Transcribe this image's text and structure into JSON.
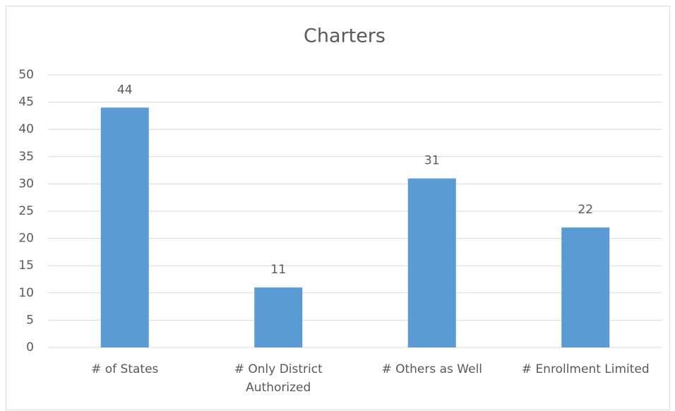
{
  "chart_data": {
    "type": "bar",
    "title": "Charters",
    "categories": [
      "# of States",
      "# Only District Authorized",
      "# Others as Well",
      "# Enrollment Limited"
    ],
    "values": [
      44,
      11,
      31,
      22
    ],
    "color": "#5b9bd5",
    "ylim": [
      0,
      50
    ],
    "yticks": [
      0,
      5,
      10,
      15,
      20,
      25,
      30,
      35,
      40,
      45,
      50
    ],
    "grid": true
  }
}
